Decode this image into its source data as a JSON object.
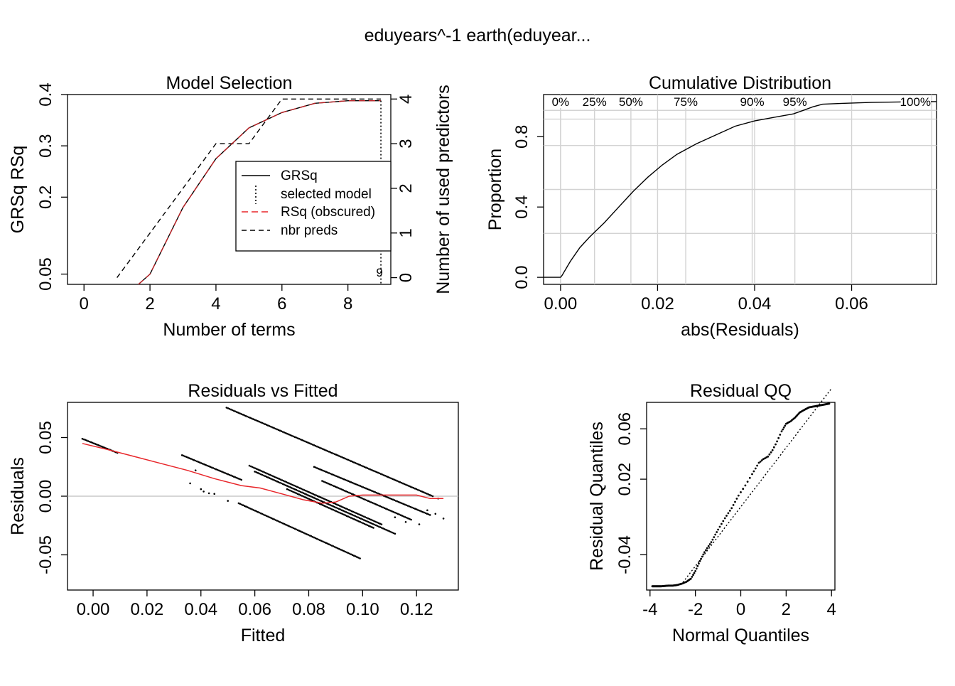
{
  "main_title": "eduyears^-1     earth(eduyear...",
  "colors": {
    "ink": "#000000",
    "red": "#e8262a",
    "grid": "#d3d3d3",
    "zero": "#c8c8c8"
  },
  "chart_data": [
    {
      "id": "model_selection",
      "type": "line",
      "title": "Model Selection",
      "xlabel": "Number of terms",
      "ylabel": "GRSq   RSq",
      "y2label": "Number of used predictors",
      "xlim": [
        -0.5,
        9.3
      ],
      "ylim": [
        0.03,
        0.4
      ],
      "y2lim": [
        -0.15,
        4.1
      ],
      "x_ticks": [
        "0",
        "2",
        "4",
        "6",
        "8"
      ],
      "x_tick_values": [
        0,
        2,
        4,
        6,
        8
      ],
      "y_ticks": [
        "0.05",
        "0.2",
        "0.3",
        "0.4"
      ],
      "y_tick_values": [
        0.05,
        0.2,
        0.3,
        0.4
      ],
      "y2_ticks": [
        "0",
        "1",
        "2",
        "3",
        "4"
      ],
      "y2_tick_values": [
        0,
        1,
        2,
        3,
        4
      ],
      "series": [
        {
          "name": "GRSq",
          "style": "solid",
          "x": [
            1.65,
            2,
            3,
            4,
            5,
            6,
            7,
            8,
            9
          ],
          "y": [
            0.03,
            0.05,
            0.18,
            0.275,
            0.335,
            0.365,
            0.383,
            0.388,
            0.388
          ]
        },
        {
          "name": "RSq (obscured)",
          "style": "red-dash",
          "x": [
            1.65,
            2,
            3,
            4,
            5,
            6,
            7,
            8,
            9
          ],
          "y": [
            0.03,
            0.05,
            0.18,
            0.275,
            0.335,
            0.365,
            0.383,
            0.388,
            0.388
          ]
        },
        {
          "name": "nbr preds",
          "style": "dashed",
          "axis": "y2",
          "x": [
            1,
            2,
            3,
            4,
            5,
            6,
            7,
            8,
            9
          ],
          "y": [
            0,
            1,
            2,
            3,
            3,
            4,
            4,
            4,
            4
          ]
        }
      ],
      "selected_model": 9,
      "selected_label": "9",
      "legend": [
        "GRSq",
        "selected model",
        "RSq (obscured)",
        "nbr preds"
      ],
      "legend_position": "center-right"
    },
    {
      "id": "cumulative_distribution",
      "type": "line",
      "title": "Cumulative Distribution",
      "xlabel": "abs(Residuals)",
      "ylabel": "Proportion",
      "xlim": [
        -0.0035,
        0.0775
      ],
      "ylim": [
        -0.04,
        1.04
      ],
      "x_ticks": [
        "0.00",
        "0.02",
        "0.04",
        "0.06"
      ],
      "x_tick_values": [
        0,
        0.02,
        0.04,
        0.06
      ],
      "y_ticks": [
        "0.0",
        "0.4",
        "0.8"
      ],
      "y_tick_values": [
        0,
        0.4,
        0.8
      ],
      "horizontal_gridlines": [
        0.25,
        0.5,
        0.75,
        0.9,
        0.95
      ],
      "percentile_labels": [
        "0%",
        "25%",
        "50%",
        "75%",
        "90%",
        "95%",
        "100%"
      ],
      "percentile_values": [
        0,
        0.007,
        0.0145,
        0.0258,
        0.0395,
        0.0483,
        0.0765
      ],
      "x": [
        0,
        0.0003,
        0.002,
        0.004,
        0.006,
        0.009,
        0.012,
        0.015,
        0.018,
        0.021,
        0.024,
        0.028,
        0.032,
        0.036,
        0.04,
        0.044,
        0.048,
        0.05,
        0.052,
        0.054,
        0.058,
        0.064,
        0.07,
        0.0765
      ],
      "y": [
        0,
        0.01,
        0.09,
        0.17,
        0.23,
        0.31,
        0.4,
        0.49,
        0.57,
        0.64,
        0.7,
        0.76,
        0.81,
        0.86,
        0.89,
        0.91,
        0.93,
        0.95,
        0.97,
        0.985,
        0.99,
        0.995,
        0.998,
        1.0
      ]
    },
    {
      "id": "residuals_vs_fitted",
      "type": "scatter",
      "title": "Residuals vs Fitted",
      "xlabel": "Fitted",
      "ylabel": "Residuals",
      "xlim": [
        -0.0095,
        0.1355
      ],
      "ylim": [
        -0.08,
        0.08
      ],
      "x_ticks": [
        "0.00",
        "0.02",
        "0.04",
        "0.06",
        "0.08",
        "0.10",
        "0.12"
      ],
      "x_tick_values": [
        0,
        0.02,
        0.04,
        0.06,
        0.08,
        0.1,
        0.12
      ],
      "y_ticks": [
        "-0.05",
        "0.00",
        "0.05"
      ],
      "y_tick_values": [
        -0.05,
        0,
        0.05
      ],
      "point_bands": [
        {
          "x0": 0.0495,
          "y0": 0.0755,
          "x1": 0.126,
          "y1": 0.0
        },
        {
          "x0": 0.058,
          "y0": 0.026,
          "x1": 0.107,
          "y1": -0.024
        },
        {
          "x0": 0.06,
          "y0": 0.021,
          "x1": 0.112,
          "y1": -0.032
        },
        {
          "x0": 0.082,
          "y0": 0.025,
          "x1": 0.125,
          "y1": -0.016
        },
        {
          "x0": 0.085,
          "y0": 0.013,
          "x1": 0.118,
          "y1": -0.02
        },
        {
          "x0": 0.072,
          "y0": 0.006,
          "x1": 0.104,
          "y1": -0.027
        },
        {
          "x0": 0.054,
          "y0": -0.006,
          "x1": 0.099,
          "y1": -0.053
        },
        {
          "x0": 0.033,
          "y0": 0.035,
          "x1": 0.055,
          "y1": 0.014
        },
        {
          "x0": -0.004,
          "y0": 0.049,
          "x1": 0.009,
          "y1": 0.037
        }
      ],
      "scatter_points": [
        [
          0.036,
          0.011
        ],
        [
          0.038,
          0.022
        ],
        [
          0.04,
          0.006
        ],
        [
          0.041,
          0.004
        ],
        [
          0.043,
          0.0025
        ],
        [
          0.045,
          0.002
        ],
        [
          0.05,
          -0.004
        ],
        [
          0.112,
          -0.018
        ],
        [
          0.116,
          -0.022
        ],
        [
          0.121,
          -0.024
        ],
        [
          0.124,
          -0.012
        ],
        [
          0.127,
          -0.015
        ],
        [
          0.13,
          -0.019
        ],
        [
          0.128,
          -0.002
        ]
      ],
      "smooth": {
        "x": [
          -0.004,
          0.005,
          0.015,
          0.025,
          0.035,
          0.045,
          0.055,
          0.062,
          0.07,
          0.078,
          0.085,
          0.09,
          0.095,
          0.1,
          0.105,
          0.11,
          0.12,
          0.125,
          0.13
        ],
        "y": [
          0.045,
          0.04,
          0.034,
          0.028,
          0.022,
          0.015,
          0.009,
          0.007,
          0.002,
          -0.003,
          -0.006,
          -0.005,
          0.0,
          0.001,
          0.001,
          0.001,
          0.001,
          -0.002,
          -0.002
        ]
      }
    },
    {
      "id": "residual_qq",
      "type": "scatter",
      "title": "Residual QQ",
      "xlabel": "Normal Quantiles",
      "ylabel": "Residual Quantiles",
      "xlim": [
        -4.15,
        4.15
      ],
      "ylim": [
        -0.068,
        0.081
      ],
      "x_ticks": [
        "-4",
        "-2",
        "0",
        "2",
        "4"
      ],
      "x_tick_values": [
        -4,
        -2,
        0,
        2,
        4
      ],
      "y_ticks": [
        "-0.04",
        "0.02",
        "0.06"
      ],
      "y_tick_values": [
        -0.04,
        0.02,
        0.06
      ],
      "qq_x": [
        -3.9,
        -3.5,
        -3.2,
        -3.0,
        -2.8,
        -2.6,
        -2.4,
        -2.2,
        -2.0,
        -1.8,
        -1.6,
        -1.3,
        -1.0,
        -0.7,
        -0.4,
        -0.1,
        0.2,
        0.5,
        0.8,
        1.0,
        1.2,
        1.4,
        1.6,
        1.8,
        2.0,
        2.2,
        2.4,
        2.6,
        2.8,
        3.0,
        3.3,
        3.6,
        3.9
      ],
      "qq_y": [
        -0.065,
        -0.065,
        -0.0645,
        -0.0645,
        -0.064,
        -0.063,
        -0.0615,
        -0.059,
        -0.053,
        -0.045,
        -0.038,
        -0.03,
        -0.02,
        -0.011,
        -0.003,
        0.007,
        0.015,
        0.024,
        0.033,
        0.036,
        0.038,
        0.043,
        0.05,
        0.058,
        0.064,
        0.066,
        0.069,
        0.073,
        0.075,
        0.077,
        0.078,
        0.079,
        0.08
      ],
      "ref_line": {
        "slope": 0.0235,
        "intercept": -0.002
      }
    }
  ]
}
